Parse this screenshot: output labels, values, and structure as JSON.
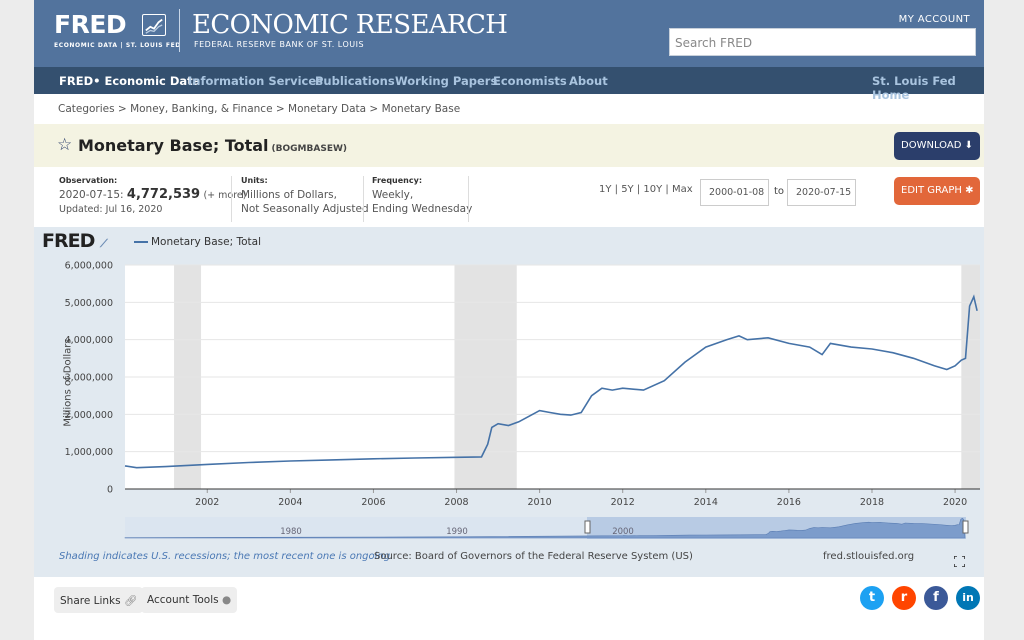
{
  "header": {
    "logo_text": "FRED",
    "logo_sub": "ECONOMIC DATA  |  ST. LOUIS FED",
    "title": "ECONOMIC RESEARCH",
    "subtitle": "FEDERAL RESERVE BANK OF ST. LOUIS",
    "my_account": "MY ACCOUNT",
    "search_placeholder": "Search FRED"
  },
  "nav": {
    "items": [
      {
        "label": "FRED• Economic Data"
      },
      {
        "label": "Information Services"
      },
      {
        "label": "Publications"
      },
      {
        "label": "Working Papers"
      },
      {
        "label": "Economists"
      },
      {
        "label": "About"
      }
    ],
    "right": "St. Louis Fed Home"
  },
  "breadcrumbs": "Categories > Money, Banking, & Finance > Monetary Data > Monetary Base",
  "series": {
    "title": "Monetary Base; Total",
    "code": "(BOGMBASEW)",
    "download": "DOWNLOAD",
    "edit_graph": "EDIT GRAPH"
  },
  "meta": {
    "observation_label": "Observation:",
    "observation_date": "2020-07-15:",
    "observation_value": "4,772,539",
    "observation_more": "(+ more)",
    "updated": "Updated: Jul 16, 2020",
    "units_label": "Units:",
    "units_line1": "Millions of Dollars,",
    "units_line2": "Not Seasonally Adjusted",
    "frequency_label": "Frequency:",
    "frequency_line1": "Weekly,",
    "frequency_line2": "Ending Wednesday"
  },
  "ranges": "1Y | 5Y | 10Y | Max",
  "date_from": "2000-01-08",
  "date_to_label": "to",
  "date_to": "2020-07-15",
  "chart_footer": {
    "shading_note": "Shading indicates U.S. recessions; the most recent one is ongoing.",
    "source": "Source: Board of Governors of the Federal Reserve System (US)",
    "url": "fred.stlouisfed.org"
  },
  "footer": {
    "share_links": "Share Links",
    "account_tools": "Account Tools"
  },
  "colors": {
    "header": "#52739d",
    "nav": "#34506f",
    "line": "#4572a7",
    "download": "#2b3e6b",
    "edit": "#e2673a"
  },
  "chart_data": {
    "type": "line",
    "title": "",
    "legend": "Monetary Base; Total",
    "xlabel": "",
    "ylabel": "Millions of Dollars",
    "xlim": [
      2000.02,
      2020.6
    ],
    "ylim": [
      0,
      6000000
    ],
    "yticks": [
      "0",
      "1,000,000",
      "2,000,000",
      "3,000,000",
      "4,000,000",
      "5,000,000",
      "6,000,000"
    ],
    "xticks": [
      "2002",
      "2004",
      "2006",
      "2008",
      "2010",
      "2012",
      "2014",
      "2016",
      "2018",
      "2020"
    ],
    "recessions": [
      [
        2001.2,
        2001.85
      ],
      [
        2007.95,
        2009.45
      ],
      [
        2020.15,
        2020.6
      ]
    ],
    "navigator_ticks": [
      "1980",
      "1990",
      "2000"
    ],
    "series": [
      {
        "name": "Monetary Base; Total",
        "x": [
          2000.02,
          2000.3,
          2001.0,
          2002.0,
          2003.0,
          2004.0,
          2005.0,
          2006.0,
          2007.0,
          2008.0,
          2008.6,
          2008.75,
          2008.85,
          2009.0,
          2009.25,
          2009.5,
          2009.75,
          2010.0,
          2010.25,
          2010.5,
          2010.75,
          2011.0,
          2011.25,
          2011.5,
          2011.75,
          2012.0,
          2012.5,
          2013.0,
          2013.5,
          2014.0,
          2014.5,
          2014.8,
          2015.0,
          2015.5,
          2016.0,
          2016.5,
          2016.8,
          2017.0,
          2017.5,
          2018.0,
          2018.5,
          2019.0,
          2019.5,
          2019.8,
          2020.0,
          2020.15,
          2020.25,
          2020.35,
          2020.45,
          2020.53
        ],
        "y": [
          620000,
          570000,
          600000,
          660000,
          710000,
          750000,
          780000,
          810000,
          830000,
          850000,
          860000,
          1200000,
          1650000,
          1750000,
          1700000,
          1800000,
          1950000,
          2100000,
          2050000,
          2000000,
          1980000,
          2050000,
          2500000,
          2700000,
          2650000,
          2700000,
          2650000,
          2900000,
          3400000,
          3800000,
          4000000,
          4100000,
          4000000,
          4050000,
          3900000,
          3800000,
          3600000,
          3900000,
          3800000,
          3750000,
          3650000,
          3500000,
          3300000,
          3200000,
          3300000,
          3450000,
          3500000,
          4900000,
          5150000,
          4772539
        ]
      }
    ]
  }
}
